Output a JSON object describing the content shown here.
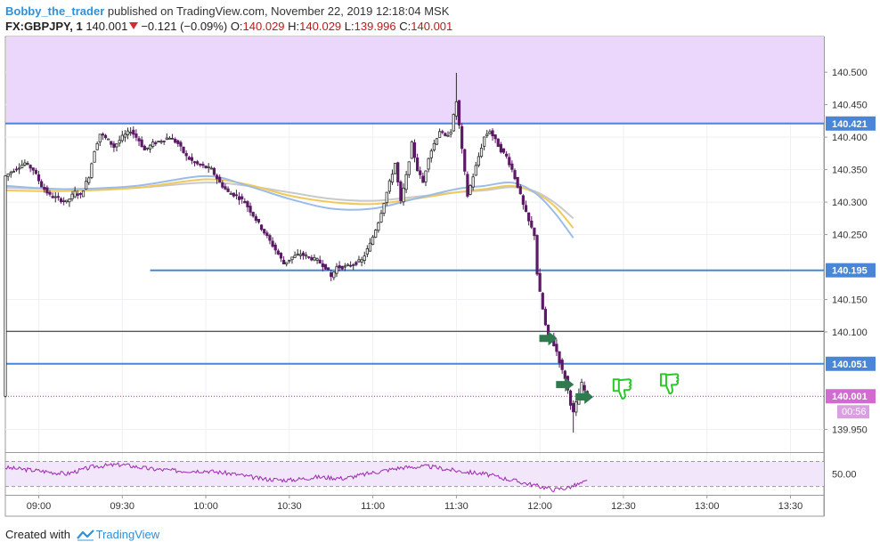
{
  "header": {
    "username": "Bobby_the_trader",
    "published_text": " published on TradingView.com, November 22, 2019 12:18:04 MSK",
    "symbol": "FX:GBPJPY, 1",
    "last": "140.001",
    "change": "−0.121 (−0.09%)",
    "o_label": "O:",
    "o_value": "140.029",
    "h_label": "H:",
    "h_value": "140.029",
    "l_label": "L:",
    "l_value": "139.996",
    "c_label": "C:",
    "c_value": "140.001"
  },
  "footer": {
    "created_with": "Created with",
    "brand": "TradingView"
  },
  "colors": {
    "bull": "#2a2a2a",
    "bear": "#5c1a66",
    "level": "#4a86d6",
    "ema_fast": "#9bbce8",
    "ema_mid": "#f1c95b",
    "ema_slow": "#c9c9c9",
    "zone": "#ebd7fb",
    "rsi": "#9c27b0",
    "price_tag": "#d16bd1",
    "arrow": "#2f7a4f",
    "thumb": "#29c929"
  },
  "icons": {
    "entry_arrow": "left-arrow-icon",
    "thumbs_down": "thumbs-down-icon"
  },
  "chart_data": {
    "type": "candlestick",
    "x_ticks": [
      "09:00",
      "09:30",
      "10:00",
      "10:30",
      "11:00",
      "11:30",
      "12:00",
      "12:30",
      "13:00",
      "13:30"
    ],
    "x_tick_times": [
      540,
      570,
      600,
      630,
      660,
      690,
      720,
      750,
      780,
      810
    ],
    "x_range": [
      528,
      822
    ],
    "y_range": [
      139.915,
      140.555
    ],
    "y_ticks": [
      "140.500",
      "140.450",
      "140.400",
      "140.350",
      "140.300",
      "140.250",
      "140.150",
      "140.100",
      "139.950"
    ],
    "y_tick_values": [
      140.5,
      140.45,
      140.4,
      140.35,
      140.3,
      140.25,
      140.15,
      140.1,
      139.95
    ],
    "price_labels": [
      {
        "text": "140.421",
        "value": 140.421,
        "kind": "level"
      },
      {
        "text": "140.195",
        "value": 140.195,
        "kind": "level"
      },
      {
        "text": "140.051",
        "value": 140.051,
        "kind": "level"
      },
      {
        "text": "140.001",
        "value": 140.001,
        "kind": "current"
      }
    ],
    "countdown": "00:56",
    "supply_zone": [
      140.421,
      140.555
    ],
    "horizontal_levels": [
      {
        "value": 140.421,
        "start": 528,
        "color": "blue"
      },
      {
        "value": 140.195,
        "start": 580,
        "color": "blue"
      },
      {
        "value": 140.101,
        "start": 528,
        "color": "black"
      },
      {
        "value": 140.051,
        "start": 528,
        "color": "blue"
      },
      {
        "value": 140.001,
        "start": 528,
        "color": "dotted"
      }
    ],
    "price_path": [
      [
        528,
        140.34
      ],
      [
        531,
        140.35
      ],
      [
        535,
        140.36
      ],
      [
        538,
        140.35
      ],
      [
        541,
        140.325
      ],
      [
        544,
        140.31
      ],
      [
        547,
        140.305
      ],
      [
        550,
        140.3
      ],
      [
        553,
        140.315
      ],
      [
        555,
        140.31
      ],
      [
        558,
        140.34
      ],
      [
        560,
        140.38
      ],
      [
        562,
        140.405
      ],
      [
        565,
        140.395
      ],
      [
        567,
        140.385
      ],
      [
        570,
        140.4
      ],
      [
        573,
        140.41
      ],
      [
        576,
        140.395
      ],
      [
        578,
        140.38
      ],
      [
        581,
        140.39
      ],
      [
        584,
        140.395
      ],
      [
        587,
        140.4
      ],
      [
        590,
        140.39
      ],
      [
        593,
        140.37
      ],
      [
        596,
        140.36
      ],
      [
        599,
        140.355
      ],
      [
        602,
        140.35
      ],
      [
        605,
        140.33
      ],
      [
        608,
        140.315
      ],
      [
        611,
        140.31
      ],
      [
        614,
        140.3
      ],
      [
        617,
        140.28
      ],
      [
        620,
        140.26
      ],
      [
        623,
        140.24
      ],
      [
        626,
        140.22
      ],
      [
        628,
        140.205
      ],
      [
        631,
        140.215
      ],
      [
        634,
        140.22
      ],
      [
        637,
        140.215
      ],
      [
        640,
        140.21
      ],
      [
        643,
        140.2
      ],
      [
        645,
        140.185
      ],
      [
        647,
        140.2
      ],
      [
        650,
        140.2
      ],
      [
        653,
        140.205
      ],
      [
        656,
        140.21
      ],
      [
        659,
        140.235
      ],
      [
        662,
        140.27
      ],
      [
        664,
        140.3
      ],
      [
        666,
        140.33
      ],
      [
        668,
        140.36
      ],
      [
        670,
        140.3
      ],
      [
        672,
        140.34
      ],
      [
        674,
        140.39
      ],
      [
        676,
        140.35
      ],
      [
        678,
        140.33
      ],
      [
        680,
        140.37
      ],
      [
        682,
        140.39
      ],
      [
        684,
        140.41
      ],
      [
        686,
        140.4
      ],
      [
        688,
        140.41
      ],
      [
        690,
        140.455
      ],
      [
        692,
        140.38
      ],
      [
        694,
        140.31
      ],
      [
        696,
        140.34
      ],
      [
        698,
        140.37
      ],
      [
        700,
        140.4
      ],
      [
        702,
        140.41
      ],
      [
        704,
        140.395
      ],
      [
        706,
        140.38
      ],
      [
        708,
        140.37
      ],
      [
        710,
        140.35
      ],
      [
        712,
        140.325
      ],
      [
        714,
        140.295
      ],
      [
        716,
        140.27
      ],
      [
        718,
        140.25
      ],
      [
        719,
        140.19
      ],
      [
        720,
        140.16
      ],
      [
        721,
        140.135
      ],
      [
        722,
        140.11
      ],
      [
        723,
        140.09
      ],
      [
        724,
        140.095
      ],
      [
        725,
        140.08
      ],
      [
        726,
        140.07
      ],
      [
        727,
        140.055
      ],
      [
        728,
        140.04
      ],
      [
        729,
        140.03
      ],
      [
        730,
        140.01
      ],
      [
        731,
        139.99
      ],
      [
        732,
        139.975
      ],
      [
        733,
        139.99
      ],
      [
        734,
        140.005
      ],
      [
        735,
        140.02
      ],
      [
        736,
        140.01
      ],
      [
        737,
        140.001
      ]
    ],
    "wicks": [
      {
        "t": 690,
        "high": 140.499
      },
      {
        "t": 732,
        "low": 139.945
      },
      {
        "t": 645,
        "low": 140.178
      }
    ],
    "ema": [
      {
        "name": "fast",
        "points": [
          [
            528,
            140.325
          ],
          [
            550,
            140.32
          ],
          [
            575,
            140.325
          ],
          [
            600,
            140.34
          ],
          [
            615,
            140.325
          ],
          [
            630,
            140.305
          ],
          [
            645,
            140.29
          ],
          [
            660,
            140.29
          ],
          [
            675,
            140.305
          ],
          [
            690,
            140.32
          ],
          [
            700,
            140.325
          ],
          [
            710,
            140.33
          ],
          [
            718,
            140.315
          ],
          [
            725,
            140.285
          ],
          [
            732,
            140.245
          ]
        ]
      },
      {
        "name": "mid",
        "points": [
          [
            528,
            140.318
          ],
          [
            550,
            140.317
          ],
          [
            575,
            140.322
          ],
          [
            600,
            140.335
          ],
          [
            615,
            140.327
          ],
          [
            630,
            140.31
          ],
          [
            645,
            140.3
          ],
          [
            660,
            140.297
          ],
          [
            675,
            140.305
          ],
          [
            690,
            140.315
          ],
          [
            700,
            140.32
          ],
          [
            710,
            140.325
          ],
          [
            718,
            140.315
          ],
          [
            725,
            140.295
          ],
          [
            732,
            140.26
          ]
        ]
      },
      {
        "name": "slow",
        "points": [
          [
            528,
            140.322
          ],
          [
            550,
            140.32
          ],
          [
            575,
            140.322
          ],
          [
            600,
            140.33
          ],
          [
            615,
            140.325
          ],
          [
            630,
            140.315
          ],
          [
            645,
            140.305
          ],
          [
            660,
            140.302
          ],
          [
            675,
            140.308
          ],
          [
            690,
            140.315
          ],
          [
            700,
            140.318
          ],
          [
            710,
            140.323
          ],
          [
            718,
            140.317
          ],
          [
            725,
            140.3
          ],
          [
            732,
            140.275
          ]
        ]
      }
    ],
    "rsi": {
      "y_tick": "50.00",
      "y_tick_value": 50,
      "y_range": [
        18,
        82
      ],
      "band": [
        30,
        70
      ],
      "values": [
        [
          528,
          60
        ],
        [
          540,
          55
        ],
        [
          550,
          50
        ],
        [
          560,
          62
        ],
        [
          570,
          65
        ],
        [
          580,
          58
        ],
        [
          590,
          55
        ],
        [
          600,
          55
        ],
        [
          610,
          50
        ],
        [
          620,
          42
        ],
        [
          630,
          40
        ],
        [
          640,
          45
        ],
        [
          650,
          43
        ],
        [
          660,
          52
        ],
        [
          670,
          60
        ],
        [
          680,
          62
        ],
        [
          690,
          55
        ],
        [
          700,
          50
        ],
        [
          710,
          40
        ],
        [
          718,
          32
        ],
        [
          725,
          25
        ],
        [
          730,
          28
        ],
        [
          737,
          38
        ]
      ]
    },
    "markers": {
      "arrows": [
        {
          "t": 723,
          "value": 140.09
        },
        {
          "t": 729,
          "value": 140.019
        },
        {
          "t": 736,
          "value": 140.0
        }
      ],
      "thumbs_down": [
        {
          "t": 749,
          "value": 140.012
        },
        {
          "t": 766,
          "value": 140.02
        }
      ]
    }
  }
}
